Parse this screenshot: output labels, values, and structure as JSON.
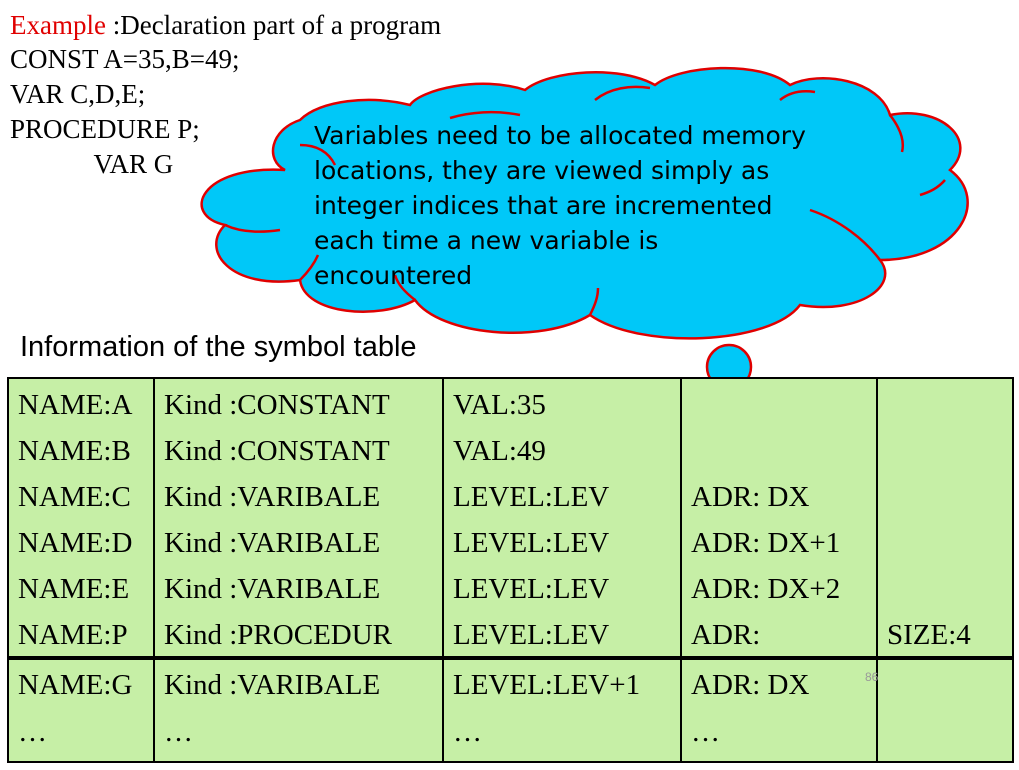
{
  "example": {
    "label": "Example",
    "title": " :Declaration part of a program",
    "lines": [
      "CONST A=35,B=49;",
      "VAR C,D,E;",
      "PROCEDURE P;",
      "        VAR G"
    ]
  },
  "callout": {
    "lines": [
      "Variables need to be allocated memory",
      "locations, they are viewed simply as",
      "integer indices that are incremented",
      "each time a new variable is",
      "encountered"
    ],
    "fill_color": "#00c8f8",
    "outline_color": "#e00000"
  },
  "heading": "Information of the symbol table",
  "table": {
    "rows": [
      [
        "NAME:A",
        "Kind :CONSTANT",
        "VAL:35",
        "",
        ""
      ],
      [
        "NAME:B",
        "Kind :CONSTANT",
        "VAL:49",
        "",
        ""
      ],
      [
        "NAME:C",
        "Kind :VARIBALE",
        " LEVEL:LEV",
        "ADR: DX",
        ""
      ],
      [
        "NAME:D",
        "Kind :VARIBALE",
        " LEVEL:LEV",
        "ADR: DX+1",
        ""
      ],
      [
        "NAME:E",
        "Kind :VARIBALE",
        " LEVEL:LEV",
        "ADR: DX+2",
        ""
      ],
      [
        "NAME:P",
        "Kind :PROCEDUR",
        " LEVEL:LEV",
        "ADR:",
        "SIZE:4"
      ],
      [
        "NAME:G",
        "Kind :VARIBALE",
        "LEVEL:LEV+1",
        "ADR: DX",
        ""
      ],
      [
        " …",
        " …",
        " …",
        " …",
        ""
      ]
    ],
    "cell_color": "#c6efa6"
  },
  "page_number": "86"
}
